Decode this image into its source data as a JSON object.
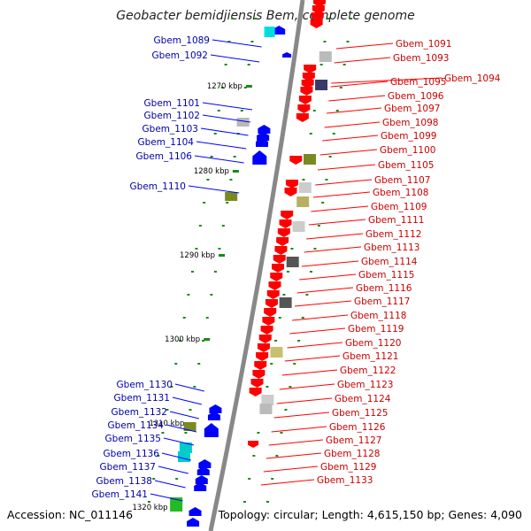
{
  "title": "Geobacter bemidjiensis Bem, complete genome",
  "accession": "Accession: NC_011146",
  "topology": "Topology: circular; Length: 4,615,150 bp; Genes: 4,090",
  "colors": {
    "forward": "#0000ff",
    "reverse": "#ff0000",
    "backbone": "#888888",
    "tick": "#1a8a1a",
    "label_left": "#0000aa",
    "label_right": "#cc0000"
  },
  "ticks": [
    "1270 kbp",
    "1280 kbp",
    "1290 kbp",
    "1300 kbp",
    "1310 kbp",
    "1320 kbp"
  ],
  "left_genes": [
    "Gbem_1089",
    "Gbem_1092",
    "Gbem_1101",
    "Gbem_1102",
    "Gbem_1103",
    "Gbem_1104",
    "Gbem_1106",
    "Gbem_1110",
    "Gbem_1130",
    "Gbem_1131",
    "Gbem_1132",
    "Gbem_1134",
    "Gbem_1135",
    "Gbem_1136",
    "Gbem_1137",
    "Gbem_1138",
    "Gbem_1141"
  ],
  "right_genes": [
    "Gbem_1091",
    "Gbem_1093",
    "Gbem_1094",
    "Gbem_1095",
    "Gbem_1096",
    "Gbem_1097",
    "Gbem_1098",
    "Gbem_1099",
    "Gbem_1100",
    "Gbem_1105",
    "Gbem_1107",
    "Gbem_1108",
    "Gbem_1109",
    "Gbem_1111",
    "Gbem_1112",
    "Gbem_1113",
    "Gbem_1114",
    "Gbem_1115",
    "Gbem_1116",
    "Gbem_1117",
    "Gbem_1118",
    "Gbem_1119",
    "Gbem_1120",
    "Gbem_1121",
    "Gbem_1122",
    "Gbem_1123",
    "Gbem_1124",
    "Gbem_1125",
    "Gbem_1126",
    "Gbem_1127",
    "Gbem_1128",
    "Gbem_1129",
    "Gbem_1133"
  ]
}
